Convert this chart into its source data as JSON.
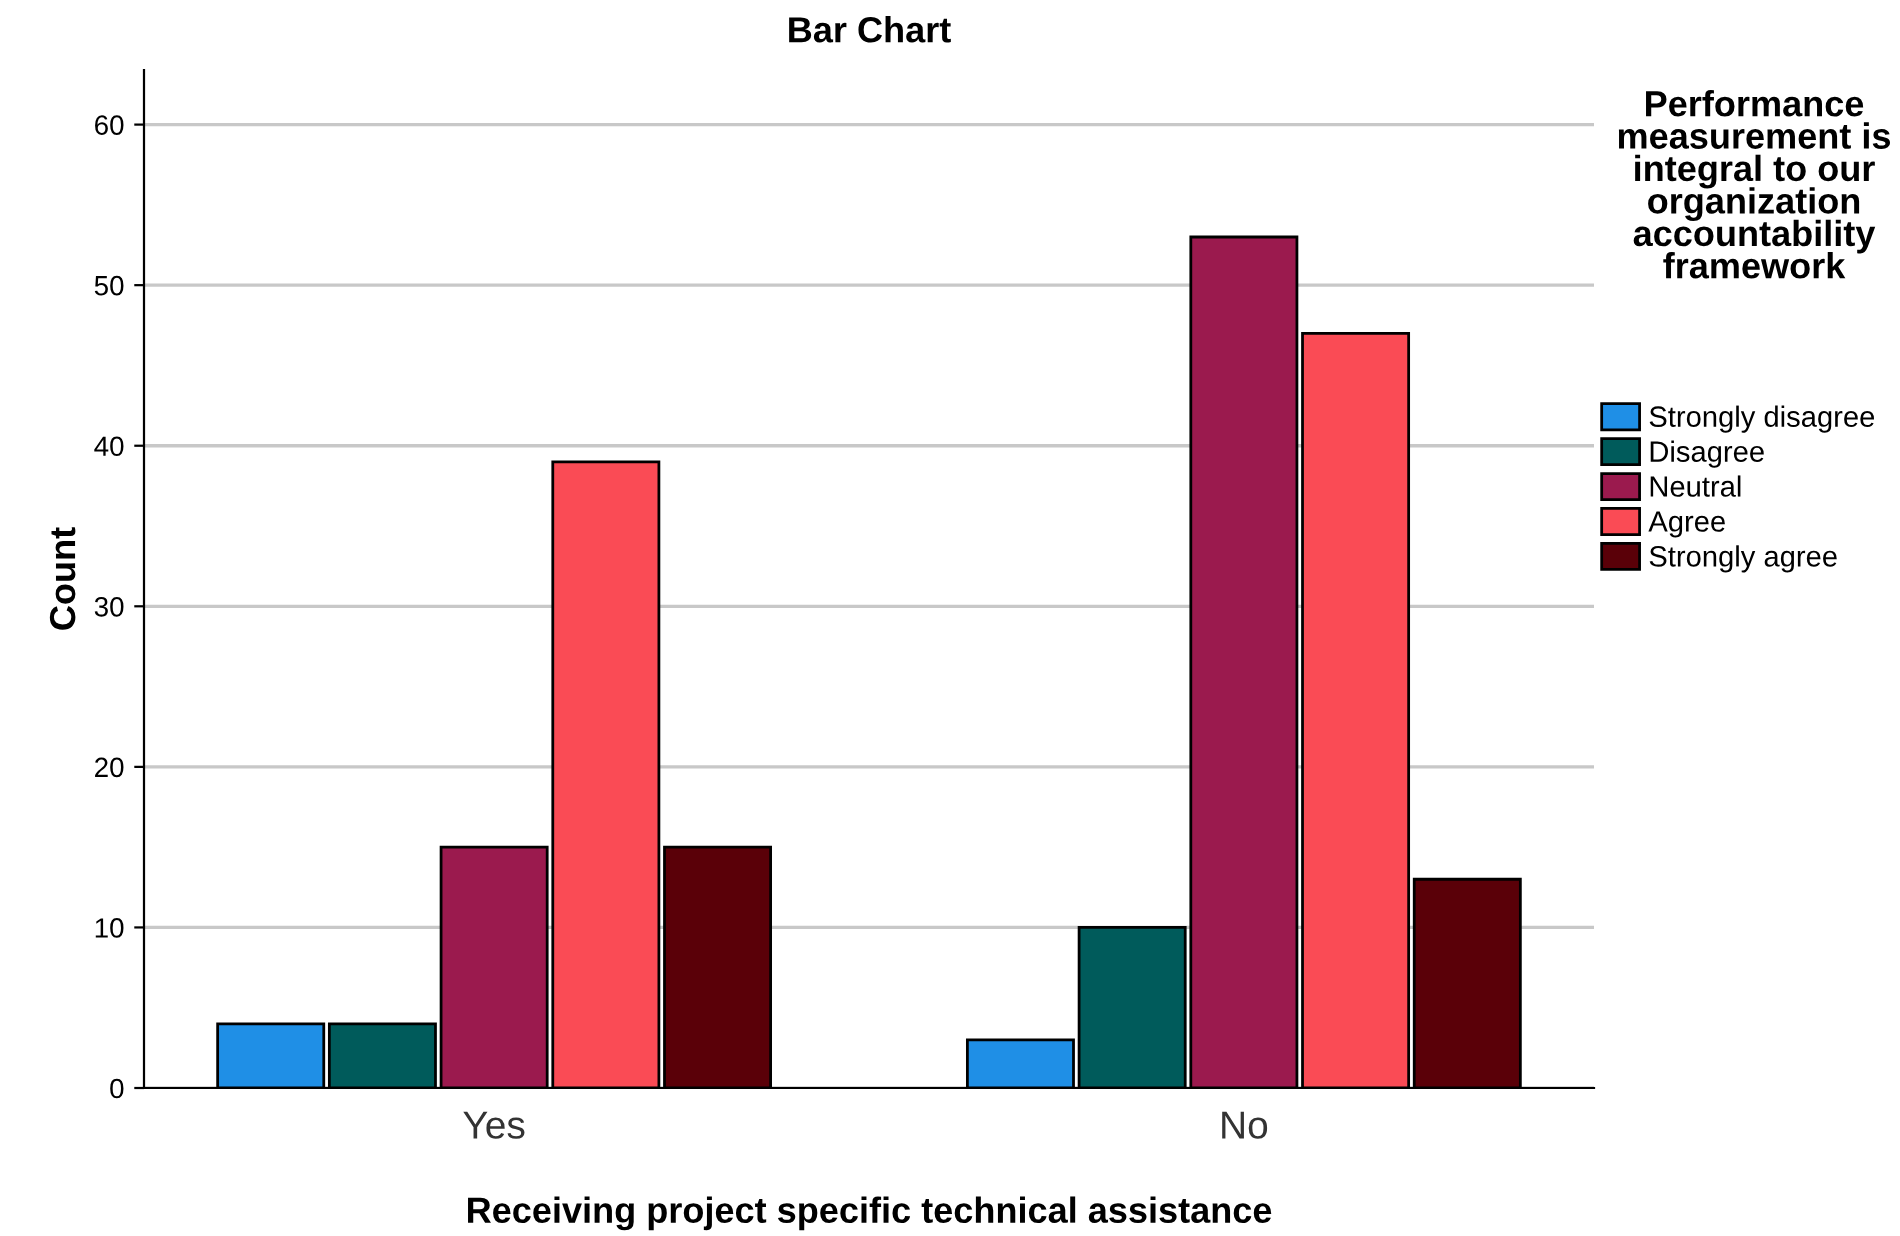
{
  "chart_data": {
    "type": "bar",
    "title": "Bar Chart",
    "xlabel": "Receiving project specific technical assistance",
    "ylabel": "Count",
    "legend_title": "Performance measurement is integral to our organization accountability framework",
    "categories": [
      "Yes",
      "No"
    ],
    "series": [
      {
        "name": "Strongly disagree",
        "color": "#1f8fe6",
        "values": [
          4,
          3
        ]
      },
      {
        "name": "Disagree",
        "color": "#005b5b",
        "values": [
          4,
          10
        ]
      },
      {
        "name": "Neutral",
        "color": "#9b1a4e",
        "values": [
          15,
          53
        ]
      },
      {
        "name": "Agree",
        "color": "#fa4b55",
        "values": [
          39,
          47
        ]
      },
      {
        "name": "Strongly agree",
        "color": "#5a0008",
        "values": [
          15,
          13
        ]
      }
    ],
    "ylim": [
      0,
      63.4
    ],
    "yticks": [
      0,
      10,
      20,
      30,
      40,
      50,
      60
    ],
    "grid": "y",
    "legend": "top right"
  }
}
